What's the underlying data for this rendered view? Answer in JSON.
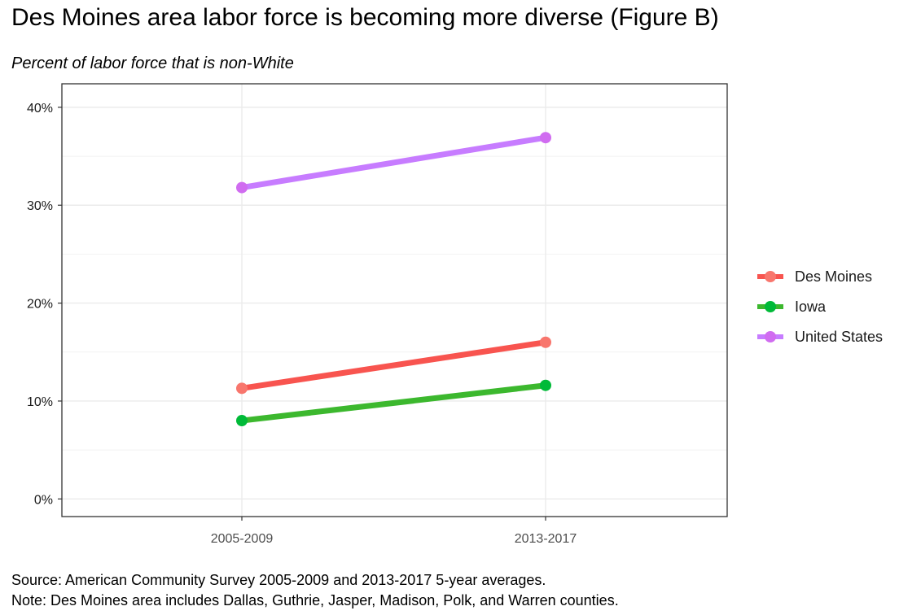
{
  "title": "Des Moines area labor force is becoming more diverse (Figure B)",
  "subtitle": "Percent of labor force that is non-White",
  "source": "Source: American Community Survey 2005-2009 and 2013-2017 5-year averages.",
  "note": "Note: Des Moines area includes Dallas, Guthrie, Jasper, Madison, Polk, and Warren counties.",
  "chart_data": {
    "type": "line",
    "title": "Des Moines area labor force is becoming more diverse (Figure B)",
    "subtitle": "Percent of labor force that is non-White",
    "categories": [
      "2005-2009",
      "2013-2017"
    ],
    "series": [
      {
        "name": "Des Moines",
        "color": "#f8766d",
        "line_color": "#f8544f",
        "values": [
          11.3,
          16.0
        ]
      },
      {
        "name": "Iowa",
        "color": "#00ba38",
        "line_color": "#3cb82e",
        "values": [
          8.0,
          11.6
        ]
      },
      {
        "name": "United States",
        "color": "#d06cf0",
        "line_color": "#c77cff",
        "values": [
          31.8,
          36.9
        ]
      }
    ],
    "yticks": [
      0,
      10,
      20,
      30,
      40
    ],
    "ytick_labels": [
      "0%",
      "10%",
      "20%",
      "30%",
      "40%"
    ],
    "ylim": [
      -1.8,
      42.4
    ],
    "xlabel": "",
    "ylabel": "",
    "grid": true,
    "legend_position": "right"
  }
}
